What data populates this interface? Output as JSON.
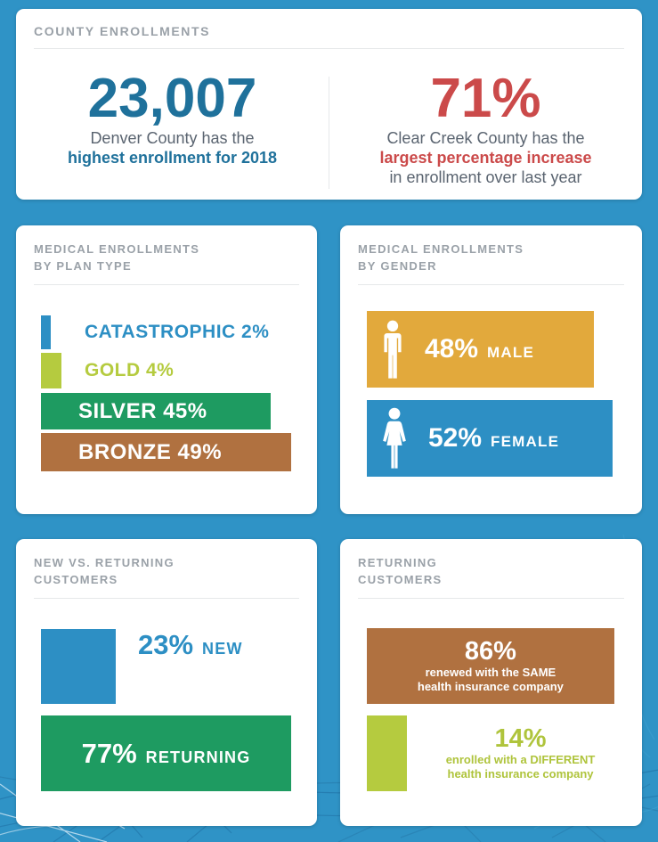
{
  "page": {
    "background_color": "#2F93C6",
    "card_color": "#FFFFFF",
    "title_color": "#9AA1A8",
    "accent_teal": "#1F719B",
    "accent_red": "#CB4A4A"
  },
  "cards": {
    "county": {
      "title": "COUNTY ENROLLMENTS",
      "left": {
        "value": "23,007",
        "line1": "Denver County has the",
        "line2": "highest enrollment for 2018"
      },
      "right": {
        "value": "71%",
        "line1": "Clear Creek County has the",
        "line2": "largest percentage increase",
        "line3": "in enrollment over last year"
      }
    },
    "plan_type": {
      "title_line1": "MEDICAL ENROLLMENTS",
      "title_line2": "BY PLAN TYPE",
      "bars": [
        {
          "label": "CATASTROPHIC 2%"
        },
        {
          "label": "GOLD 4%"
        },
        {
          "label": "SILVER 45%"
        },
        {
          "label": "BRONZE 49%"
        }
      ]
    },
    "gender": {
      "title_line1": "MEDICAL ENROLLMENTS",
      "title_line2": "BY GENDER",
      "male": {
        "pct": "48%",
        "label": "MALE",
        "icon": "male-icon"
      },
      "female": {
        "pct": "52%",
        "label": "FEMALE",
        "icon": "female-icon"
      }
    },
    "new_returning": {
      "title_line1": "NEW VS. RETURNING",
      "title_line2": "CUSTOMERS",
      "new": {
        "pct": "23%",
        "label": "NEW"
      },
      "returning": {
        "pct": "77%",
        "label": "RETURNING"
      }
    },
    "returning_customers": {
      "title_line1": "RETURNING",
      "title_line2": "CUSTOMERS",
      "same": {
        "pct": "86%",
        "line1": "renewed with the SAME",
        "line2": "health insurance company"
      },
      "different": {
        "pct": "14%",
        "line1": "enrolled with a DIFFERENT",
        "line2": "health insurance company"
      }
    }
  },
  "chart_data": [
    {
      "type": "bar",
      "orientation": "horizontal",
      "title": "MEDICAL ENROLLMENTS BY PLAN TYPE",
      "categories": [
        "CATASTROPHIC",
        "GOLD",
        "SILVER",
        "BRONZE"
      ],
      "values": [
        2,
        4,
        45,
        49
      ],
      "unit": "%",
      "colors": [
        "#2D8FC4",
        "#B5CB3F",
        "#1E9B61",
        "#B07140"
      ],
      "xlim": [
        0,
        100
      ],
      "grid": false,
      "legend": false
    },
    {
      "type": "bar",
      "orientation": "horizontal",
      "title": "MEDICAL ENROLLMENTS BY GENDER",
      "categories": [
        "MALE",
        "FEMALE"
      ],
      "values": [
        48,
        52
      ],
      "unit": "%",
      "colors": [
        "#E2A93C",
        "#2D8FC4"
      ],
      "xlim": [
        0,
        100
      ],
      "grid": false,
      "legend": false
    },
    {
      "type": "bar",
      "orientation": "horizontal",
      "title": "NEW VS. RETURNING CUSTOMERS",
      "categories": [
        "NEW",
        "RETURNING"
      ],
      "values": [
        23,
        77
      ],
      "unit": "%",
      "colors": [
        "#2D8FC4",
        "#1E9B61"
      ],
      "xlim": [
        0,
        100
      ],
      "grid": false,
      "legend": false
    },
    {
      "type": "bar",
      "orientation": "horizontal",
      "title": "RETURNING CUSTOMERS",
      "categories": [
        "renewed with the SAME health insurance company",
        "enrolled with a DIFFERENT health insurance company"
      ],
      "values": [
        86,
        14
      ],
      "unit": "%",
      "colors": [
        "#B07140",
        "#B5CB3F"
      ],
      "xlim": [
        0,
        100
      ],
      "grid": false,
      "legend": false
    }
  ],
  "icons": {
    "male": "male-icon",
    "female": "female-icon"
  }
}
